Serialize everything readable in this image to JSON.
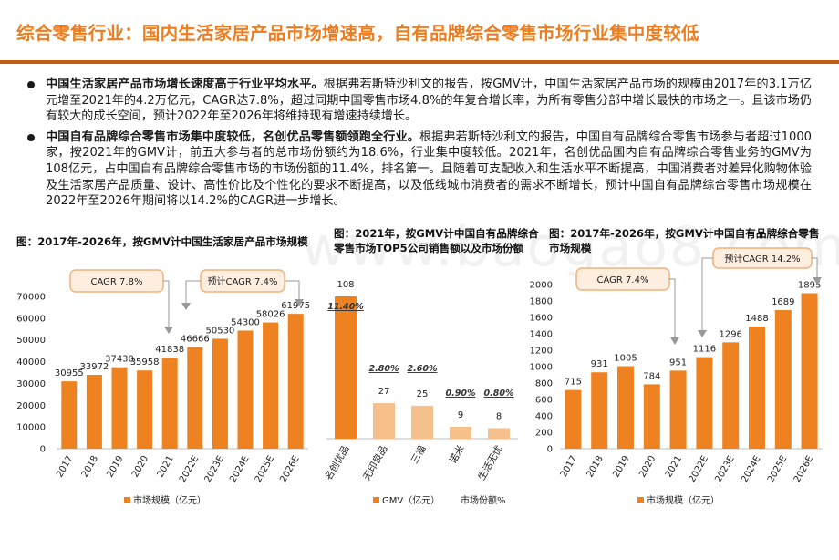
{
  "page": {
    "title": "综合零售行业：国内生活家居产品市场增速高，自有品牌综合零售市场行业集中度较低",
    "bullets": [
      {
        "bold": "中国生活家居产品市场增长速度高于行业平均水平。",
        "text": "根据弗若斯特沙利文的报告，按GMV计，中国生活家居产品市场的规模由2017年的3.1万亿元增至2021年的4.2万亿元，CAGR达7.8%，超过同期中国零售市场4.8%的年复合增长率，为所有零售分部中增长最快的市场之一。且该市场仍有较大的成长空间，预计2022年至2026年将维持现有增速持续增长。"
      },
      {
        "bold": "中国自有品牌综合零售市场集中度较低，名创优品零售额领跑全行业。",
        "text": "根据弗若斯特沙利文的报告，中国自有品牌综合零售市场参与者超过1000家，按2021年的GMV计，前五大参与者的总市场份额约为18.6%，行业集中度较低。2021年，名创优品国内自有品牌综合零售业务的GMV为108亿元，占中国自有品牌综合零售市场的市场份额的11.4%，排名第一。且随着可支配收入和生活水平不断提高，中国消费者对差异化购物体验及生活家居产品质量、设计、高性价比及个性化的要求不断提高，以及低线城市消费者的需求不断增长，预计中国自有品牌综合零售市场规模在2022年至2026年期间将以14.2%的CAGR进一步增长。"
      }
    ],
    "watermark": "www.baogao8.com",
    "colors": {
      "accent": "#ec7c1e",
      "bar": "#ee8120",
      "bar_light": "#f6c08c",
      "rule": "#c45f12"
    }
  },
  "chart_data": [
    {
      "type": "bar",
      "title": "图：2017年-2026年，按GMV计中国生活家居产品市场规模",
      "categories": [
        "2017",
        "2018",
        "2019",
        "2020",
        "2021",
        "2022E",
        "2023E",
        "2024E",
        "2025E",
        "2026E"
      ],
      "series": [
        {
          "name": "市场规模（亿元）",
          "values": [
            30955,
            33972,
            37430,
            35958,
            41838,
            46666,
            50530,
            54300,
            58026,
            61975
          ]
        }
      ],
      "ylim": [
        0,
        70000
      ],
      "yticks": [
        0,
        10000,
        20000,
        30000,
        40000,
        50000,
        60000,
        70000
      ],
      "annotations": [
        "CAGR 7.8%",
        "预计CAGR 7.4%"
      ],
      "legend": "bottom",
      "grid": false
    },
    {
      "type": "bar",
      "title": "图：2021年，按GMV计中国自有品牌综合零售市场TOP5公司销售额以及市场份额",
      "categories": [
        "名创优品",
        "无印良品",
        "三福",
        "诺米",
        "生活无忧"
      ],
      "series": [
        {
          "name": "GMV（亿元）",
          "values": [
            108,
            27,
            25,
            9,
            8
          ]
        },
        {
          "name": "市场份额%",
          "values": [
            11.4,
            2.8,
            2.6,
            0.9,
            0.8
          ]
        }
      ],
      "share_labels": [
        "11.40%",
        "2.80%",
        "2.60%",
        "0.90%",
        "0.80%"
      ],
      "legend": "bottom",
      "grid": false
    },
    {
      "type": "bar",
      "title": "图：2017年-2026年，按GMV计中国自有品牌综合零售市场规模",
      "categories": [
        "2017",
        "2018",
        "2019",
        "2020",
        "2021",
        "2022E",
        "2023E",
        "2024E",
        "2025E",
        "2026E"
      ],
      "series": [
        {
          "name": "市场规模（亿元）",
          "values": [
            715,
            931,
            1005,
            784,
            951,
            1116,
            1296,
            1488,
            1689,
            1895
          ]
        }
      ],
      "ylim": [
        0,
        2000
      ],
      "yticks": [
        0,
        200,
        400,
        600,
        800,
        1000,
        1200,
        1400,
        1600,
        1800,
        2000
      ],
      "annotations": [
        "CAGR 7.4%",
        "预计CAGR 14.2%"
      ],
      "legend": "bottom",
      "grid": false
    }
  ]
}
